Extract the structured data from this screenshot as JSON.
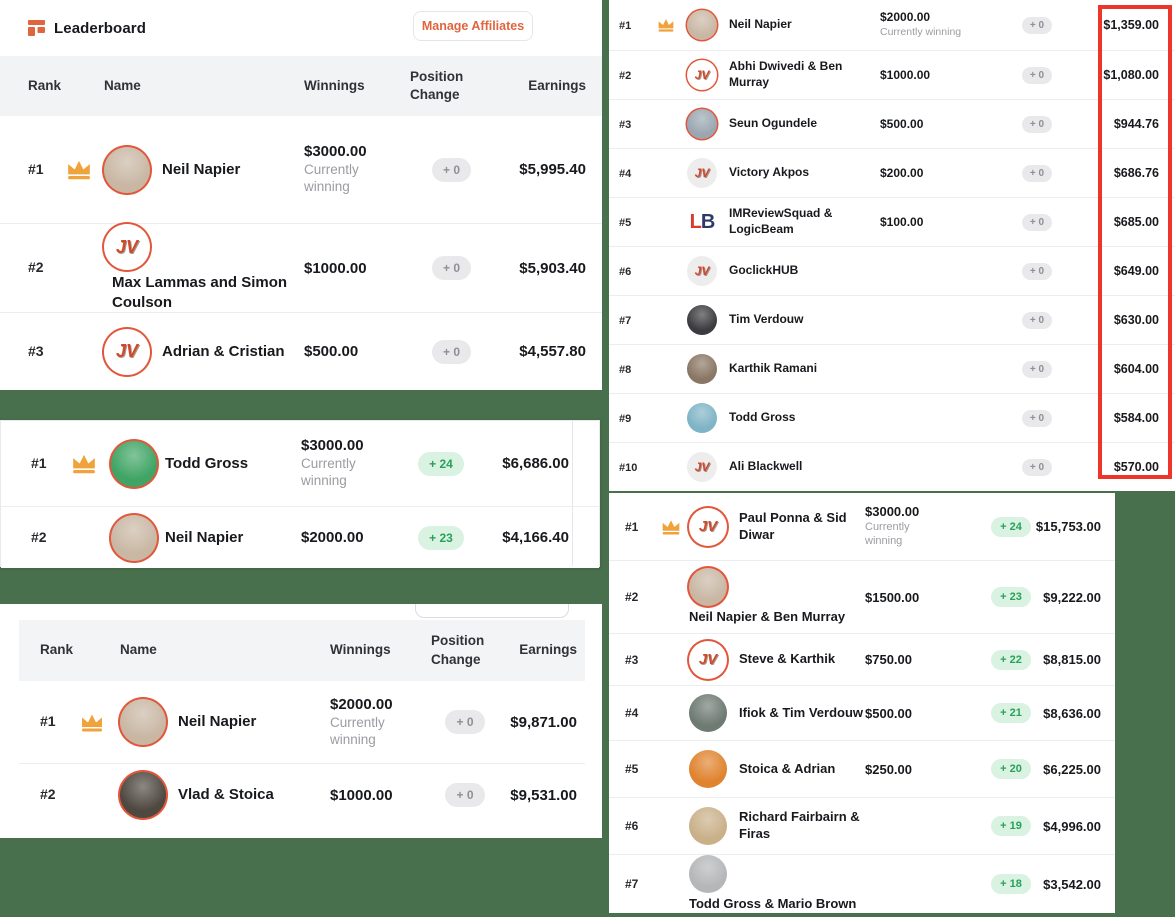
{
  "colors": {
    "background_green": "#48704d",
    "accent_orange": "#e0653f",
    "crown_gold": "#f0a23b",
    "avatar_ring": "#e2573c",
    "highlight_red": "#ee352c",
    "pill_gray_bg": "#e9e9eb",
    "pill_gray_text": "#8f8f94",
    "pill_green_bg": "#d9f2e1",
    "pill_green_text": "#2aa05a"
  },
  "panel_a": {
    "title": "Leaderboard",
    "button_label": "Manage Affiliates",
    "headers": [
      "Rank",
      "Name",
      "Winnings",
      "Position Change",
      "Earnings"
    ],
    "rows": [
      {
        "rank": "#1",
        "crown": true,
        "avatar": {
          "kind": "photo",
          "ring": true,
          "color": "#c9b7a4"
        },
        "name": "Neil Napier",
        "name_below": false,
        "winnings": "$3000.00",
        "note": "Currently winning",
        "change": "+ 0",
        "change_type": "zero",
        "earnings": "$5,995.40"
      },
      {
        "rank": "#2",
        "crown": false,
        "avatar": {
          "kind": "jv",
          "ring": true,
          "text": "JV"
        },
        "name": "Max Lammas and Simon Coulson",
        "name_below": true,
        "winnings": "$1000.00",
        "note": "",
        "change": "+ 0",
        "change_type": "zero",
        "earnings": "$5,903.40"
      },
      {
        "rank": "#3",
        "crown": false,
        "avatar": {
          "kind": "jv",
          "ring": true,
          "text": "JV"
        },
        "name": "Adrian & Cristian",
        "name_below": false,
        "winnings": "$500.00",
        "note": "",
        "change": "+ 0",
        "change_type": "zero",
        "earnings": "$4,557.80"
      }
    ]
  },
  "panel_b": {
    "rows": [
      {
        "rank": "#1",
        "crown": true,
        "avatar": {
          "kind": "photo",
          "ring": true,
          "color": "#3fa464"
        },
        "name": "Todd Gross",
        "name_below": false,
        "winnings": "$3000.00",
        "note": "Currently winning",
        "change": "+ 24",
        "change_type": "up",
        "earnings": "$6,686.00"
      },
      {
        "rank": "#2",
        "crown": false,
        "avatar": {
          "kind": "photo",
          "ring": true,
          "color": "#c9b7a4"
        },
        "name": "Neil Napier",
        "name_below": false,
        "winnings": "$2000.00",
        "note": "",
        "change": "+ 23",
        "change_type": "up",
        "earnings": "$4,166.40"
      }
    ]
  },
  "panel_c": {
    "headers": [
      "Rank",
      "Name",
      "Winnings",
      "Position Change",
      "Earnings"
    ],
    "rows": [
      {
        "rank": "#1",
        "crown": true,
        "avatar": {
          "kind": "photo",
          "ring": true,
          "color": "#c9b7a4"
        },
        "name": "Neil Napier",
        "name_below": false,
        "winnings": "$2000.00",
        "note": "Currently winning",
        "change": "+ 0",
        "change_type": "zero",
        "earnings": "$9,871.00"
      },
      {
        "rank": "#2",
        "crown": false,
        "avatar": {
          "kind": "photo",
          "ring": true,
          "color": "#4e4840"
        },
        "name": "Vlad & Stoica",
        "name_below": false,
        "winnings": "$1000.00",
        "note": "",
        "change": "+ 0",
        "change_type": "zero",
        "earnings": "$9,531.00"
      }
    ]
  },
  "panel_d": {
    "rows": [
      {
        "rank": "#1",
        "crown": true,
        "avatar": {
          "kind": "photo",
          "ring": true,
          "color": "#c9b7a4"
        },
        "name": "Neil Napier",
        "name_below": false,
        "winnings": "$2000.00",
        "note": "Currently winning",
        "change": "+ 0",
        "change_type": "zero",
        "earnings": "$1,359.00"
      },
      {
        "rank": "#2",
        "crown": false,
        "avatar": {
          "kind": "jv",
          "ring": true,
          "text": "JV"
        },
        "name": "Abhi Dwivedi & Ben Murray",
        "name_below": false,
        "winnings": "$1000.00",
        "note": "",
        "change": "+ 0",
        "change_type": "zero",
        "earnings": "$1,080.00"
      },
      {
        "rank": "#3",
        "crown": false,
        "avatar": {
          "kind": "photo",
          "ring": true,
          "color": "#9aa7b2"
        },
        "name": "Seun Ogundele",
        "name_below": false,
        "winnings": "$500.00",
        "note": "",
        "change": "+ 0",
        "change_type": "zero",
        "earnings": "$944.76"
      },
      {
        "rank": "#4",
        "crown": false,
        "avatar": {
          "kind": "jv",
          "ring": false,
          "text": "JV"
        },
        "name": "Victory Akpos",
        "name_below": false,
        "winnings": "$200.00",
        "note": "",
        "change": "+ 0",
        "change_type": "zero",
        "earnings": "$686.76"
      },
      {
        "rank": "#5",
        "crown": false,
        "avatar": {
          "kind": "lb",
          "ring": false,
          "text": "LB"
        },
        "name": "IMReviewSquad & LogicBeam",
        "name_below": false,
        "winnings": "$100.00",
        "note": "",
        "change": "+ 0",
        "change_type": "zero",
        "earnings": "$685.00"
      },
      {
        "rank": "#6",
        "crown": false,
        "avatar": {
          "kind": "jv",
          "ring": false,
          "text": "JV"
        },
        "name": "GoclickHUB",
        "name_below": false,
        "winnings": "",
        "note": "",
        "change": "+ 0",
        "change_type": "zero",
        "earnings": "$649.00"
      },
      {
        "rank": "#7",
        "crown": false,
        "avatar": {
          "kind": "photo",
          "ring": false,
          "color": "#3c3c40"
        },
        "name": "Tim Verdouw",
        "name_below": false,
        "winnings": "",
        "note": "",
        "change": "+ 0",
        "change_type": "zero",
        "earnings": "$630.00"
      },
      {
        "rank": "#8",
        "crown": false,
        "avatar": {
          "kind": "photo",
          "ring": false,
          "color": "#8a7664"
        },
        "name": "Karthik Ramani",
        "name_below": false,
        "winnings": "",
        "note": "",
        "change": "+ 0",
        "change_type": "zero",
        "earnings": "$604.00"
      },
      {
        "rank": "#9",
        "crown": false,
        "avatar": {
          "kind": "photo",
          "ring": false,
          "color": "#7fb4c6"
        },
        "name": "Todd Gross",
        "name_below": false,
        "winnings": "",
        "note": "",
        "change": "+ 0",
        "change_type": "zero",
        "earnings": "$584.00"
      },
      {
        "rank": "#10",
        "crown": false,
        "avatar": {
          "kind": "jv",
          "ring": false,
          "text": "JV"
        },
        "name": "Ali Blackwell",
        "name_below": false,
        "winnings": "",
        "note": "",
        "change": "+ 0",
        "change_type": "zero",
        "earnings": "$570.00"
      }
    ]
  },
  "panel_e": {
    "rows": [
      {
        "rank": "#1",
        "crown": true,
        "avatar": {
          "kind": "jv",
          "ring": true,
          "text": "JV"
        },
        "name": "Paul Ponna & Sid Diwar",
        "name_below": false,
        "winnings": "$3000.00",
        "note": "Currently winning",
        "change": "+ 24",
        "change_type": "up",
        "earnings": "$15,753.00"
      },
      {
        "rank": "#2",
        "crown": false,
        "avatar": {
          "kind": "photo",
          "ring": true,
          "color": "#c9b7a4"
        },
        "name": "Neil Napier & Ben Murray",
        "name_below": true,
        "winnings": "$1500.00",
        "note": "",
        "change": "+ 23",
        "change_type": "up",
        "earnings": "$9,222.00"
      },
      {
        "rank": "#3",
        "crown": false,
        "avatar": {
          "kind": "jv",
          "ring": true,
          "text": "JV"
        },
        "name": "Steve & Karthik",
        "name_below": false,
        "winnings": "$750.00",
        "note": "",
        "change": "+ 22",
        "change_type": "up",
        "earnings": "$8,815.00"
      },
      {
        "rank": "#4",
        "crown": false,
        "avatar": {
          "kind": "photo",
          "ring": false,
          "color": "#6e7a72"
        },
        "name": "Ifiok & Tim Verdouw",
        "name_below": false,
        "winnings": "$500.00",
        "note": "",
        "change": "+ 21",
        "change_type": "up",
        "earnings": "$8,636.00"
      },
      {
        "rank": "#5",
        "crown": false,
        "avatar": {
          "kind": "photo",
          "ring": false,
          "color": "#e0832f"
        },
        "name": "Stoica & Adrian",
        "name_below": false,
        "winnings": "$250.00",
        "note": "",
        "change": "+ 20",
        "change_type": "up",
        "earnings": "$6,225.00"
      },
      {
        "rank": "#6",
        "crown": false,
        "avatar": {
          "kind": "photo",
          "ring": false,
          "color": "#c9b089"
        },
        "name": "Richard Fairbairn & Firas",
        "name_below": false,
        "winnings": "",
        "note": "",
        "change": "+ 19",
        "change_type": "up",
        "earnings": "$4,996.00"
      },
      {
        "rank": "#7",
        "crown": false,
        "avatar": {
          "kind": "photo",
          "ring": false,
          "color": "#b4b6b8"
        },
        "name": "Todd Gross & Mario Brown",
        "name_below": true,
        "winnings": "",
        "note": "",
        "change": "+ 18",
        "change_type": "up",
        "earnings": "$3,542.00"
      }
    ]
  }
}
